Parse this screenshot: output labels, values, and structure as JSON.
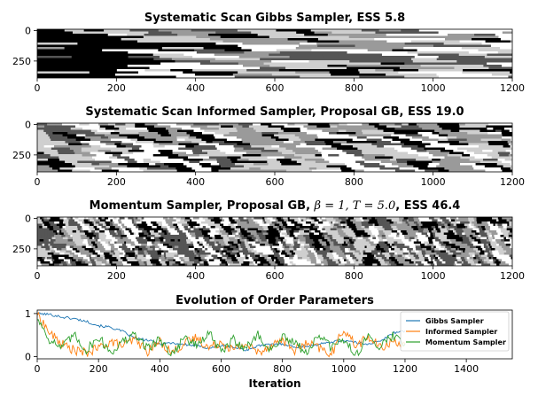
{
  "chart_data": [
    {
      "type": "heatmap",
      "title": "Systematic Scan Gibbs Sampler, ESS 5.8",
      "xlim": [
        0,
        1200
      ],
      "ylim": [
        0,
        400
      ],
      "xticks": [
        "0",
        "200",
        "400",
        "600",
        "800",
        "1000",
        "1200"
      ],
      "yticks": [
        "0",
        "250"
      ],
      "levels": [
        "#000000",
        "#555555",
        "#9a9a9a",
        "#cfcfcf",
        "#ffffff"
      ],
      "texture": "long horizontal bands (slow mixing)"
    },
    {
      "type": "heatmap",
      "title": "Systematic Scan Informed Sampler, Proposal GB, ESS 19.0",
      "xlim": [
        0,
        1200
      ],
      "ylim": [
        0,
        400
      ],
      "xticks": [
        "0",
        "200",
        "400",
        "600",
        "800",
        "1000",
        "1200"
      ],
      "yticks": [
        "0",
        "250"
      ],
      "levels": [
        "#000000",
        "#555555",
        "#9a9a9a",
        "#cfcfcf",
        "#ffffff"
      ],
      "texture": "medium length bands"
    },
    {
      "type": "heatmap",
      "title_prefix": "Momentum Sampler, Proposal GB, ",
      "title_math": "β = 1, T = 5.0",
      "title_suffix": ", ESS 46.4",
      "xlim": [
        0,
        1200
      ],
      "ylim": [
        0,
        400
      ],
      "xticks": [
        "0",
        "200",
        "400",
        "600",
        "800",
        "1000",
        "1200"
      ],
      "yticks": [
        "0",
        "250"
      ],
      "levels": [
        "#000000",
        "#555555",
        "#9a9a9a",
        "#cfcfcf",
        "#ffffff"
      ],
      "texture": "short fragmented patches (fast mixing)"
    },
    {
      "type": "line",
      "title": "Evolution of Order Parameters",
      "xlabel": "Iteration",
      "ylabel": "",
      "xlim": [
        0,
        1550
      ],
      "ylim": [
        -0.05,
        1.08
      ],
      "xticks": [
        "0",
        "200",
        "400",
        "600",
        "800",
        "1000",
        "1200",
        "1400"
      ],
      "yticks": [
        "0",
        "1"
      ],
      "legend_position": "right",
      "series": [
        {
          "name": "Gibbs Sampler",
          "color": "#1f77b4",
          "x": [
            0,
            40,
            80,
            120,
            160,
            200,
            240,
            280,
            320,
            360,
            400,
            440,
            480,
            520,
            560,
            600,
            640,
            680,
            720,
            760,
            800,
            840,
            880,
            920,
            960,
            1000,
            1040,
            1080,
            1120,
            1160,
            1200
          ],
          "values": [
            1.0,
            0.98,
            0.92,
            0.88,
            0.82,
            0.72,
            0.68,
            0.58,
            0.42,
            0.38,
            0.3,
            0.32,
            0.28,
            0.25,
            0.2,
            0.25,
            0.22,
            0.15,
            0.25,
            0.28,
            0.3,
            0.22,
            0.25,
            0.28,
            0.35,
            0.38,
            0.32,
            0.3,
            0.35,
            0.55,
            0.6
          ]
        },
        {
          "name": "Informed Sampler",
          "color": "#ff7f0e",
          "x": [
            0,
            40,
            80,
            120,
            160,
            200,
            240,
            280,
            320,
            360,
            400,
            440,
            480,
            520,
            560,
            600,
            640,
            680,
            720,
            760,
            800,
            840,
            880,
            920,
            960,
            1000,
            1040,
            1080,
            1120,
            1160,
            1200
          ],
          "values": [
            1.0,
            0.55,
            0.3,
            0.15,
            0.08,
            0.2,
            0.35,
            0.25,
            0.4,
            0.12,
            0.35,
            0.1,
            0.3,
            0.45,
            0.2,
            0.35,
            0.15,
            0.3,
            0.1,
            0.25,
            0.4,
            0.15,
            0.3,
            0.2,
            0.05,
            0.65,
            0.25,
            0.45,
            0.2,
            0.35,
            0.3
          ]
        },
        {
          "name": "Momentum Sampler",
          "color": "#2ca02c",
          "x": [
            0,
            40,
            80,
            120,
            160,
            200,
            240,
            280,
            320,
            360,
            400,
            440,
            480,
            520,
            560,
            600,
            640,
            680,
            720,
            760,
            800,
            840,
            880,
            920,
            960,
            1000,
            1040,
            1080,
            1120,
            1160,
            1200
          ],
          "values": [
            0.9,
            0.4,
            0.2,
            0.5,
            0.15,
            0.45,
            0.1,
            0.35,
            0.5,
            0.2,
            0.4,
            0.05,
            0.45,
            0.25,
            0.55,
            0.1,
            0.4,
            0.2,
            0.5,
            0.15,
            0.45,
            0.3,
            0.1,
            0.5,
            0.2,
            0.4,
            0.05,
            0.45,
            0.25,
            0.5,
            0.3
          ]
        }
      ]
    }
  ]
}
